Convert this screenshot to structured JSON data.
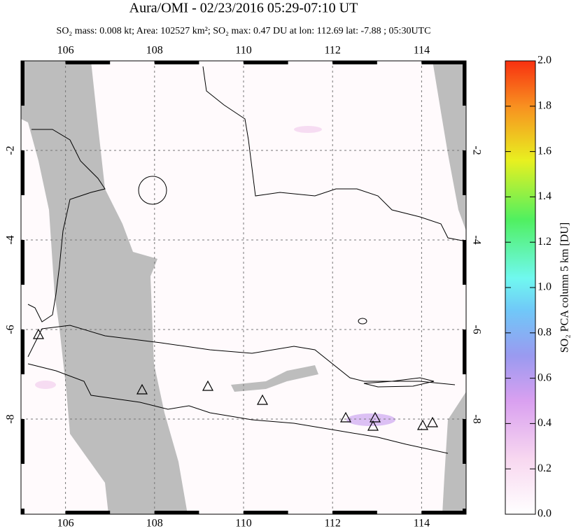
{
  "header": {
    "title": "Aura/OMI - 02/23/2016 05:29-07:10 UT",
    "subtitle": "SO₂ mass: 0.008 kt; Area: 102527 km²; SO₂ max: 0.47 DU at lon: 112.69 lat: -7.88 ; 05:30UTC"
  },
  "map": {
    "xlim": [
      105,
      115
    ],
    "ylim": [
      0,
      -10.125
    ],
    "xticks": [
      106,
      108,
      110,
      112,
      114
    ],
    "yticks": [
      -2,
      -4,
      -6,
      -8
    ]
  },
  "colorbar": {
    "label": "SO₂ PCA column 5 km [DU]",
    "lim": [
      0,
      2
    ],
    "ticks": [
      {
        "value": 0,
        "label": "0.0"
      },
      {
        "value": 0.2,
        "label": "0.2"
      },
      {
        "value": 0.4,
        "label": "0.4"
      },
      {
        "value": 0.6,
        "label": "0.6"
      },
      {
        "value": 0.8,
        "label": "0.8"
      },
      {
        "value": 1,
        "label": "1.0"
      },
      {
        "value": 1.2,
        "label": "1.2"
      },
      {
        "value": 1.4,
        "label": "1.4"
      },
      {
        "value": 1.6,
        "label": "1.6"
      },
      {
        "value": 1.8,
        "label": "1.8"
      },
      {
        "value": 2,
        "label": "2.0"
      }
    ]
  }
}
